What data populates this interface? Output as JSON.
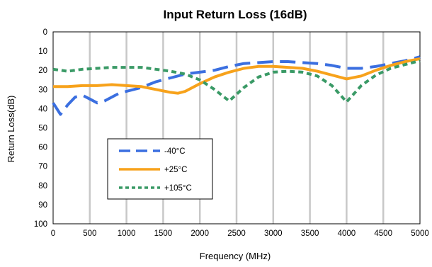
{
  "chart_data": {
    "type": "line",
    "title": "Input Return Loss (16dB)",
    "xlabel": "Frequency (MHz)",
    "ylabel": "Return Loss(dB)",
    "xlim": [
      0,
      5000
    ],
    "ylim": [
      0,
      100
    ],
    "y_inverted": true,
    "x_ticks": [
      0,
      500,
      1000,
      1500,
      2000,
      2500,
      3000,
      3500,
      4000,
      4500,
      5000
    ],
    "y_ticks": [
      0,
      10,
      20,
      30,
      40,
      50,
      60,
      70,
      80,
      90,
      100
    ],
    "grid": "vertical",
    "legend": "lower-left inside",
    "series": [
      {
        "name": "-40°C",
        "color": "#3b6fe0",
        "dash": "long-dash",
        "x": [
          0,
          100,
          200,
          300,
          400,
          500,
          600,
          700,
          800,
          900,
          1000,
          1200,
          1400,
          1600,
          1800,
          2000,
          2200,
          2400,
          2600,
          2800,
          3000,
          3200,
          3400,
          3600,
          3800,
          4000,
          4200,
          4400,
          4600,
          4800,
          5000
        ],
        "values": [
          37,
          43,
          38,
          34,
          33,
          35,
          37,
          36,
          34,
          32,
          31,
          29,
          26,
          24,
          22,
          21,
          20,
          18,
          16.5,
          16,
          15.5,
          15.5,
          16,
          16.5,
          17.5,
          19,
          19,
          18,
          16.5,
          15,
          13
        ]
      },
      {
        "name": "+25°C",
        "color": "#f7a21b",
        "dash": "solid",
        "x": [
          0,
          200,
          400,
          600,
          800,
          1000,
          1200,
          1400,
          1600,
          1700,
          1800,
          2000,
          2200,
          2400,
          2600,
          2800,
          3000,
          3200,
          3400,
          3600,
          3800,
          4000,
          4200,
          4400,
          4600,
          4800,
          5000
        ],
        "values": [
          28.5,
          28.5,
          28,
          28,
          27.5,
          28,
          28.5,
          30,
          31.5,
          32,
          31,
          27,
          23.5,
          21,
          19,
          18,
          18,
          18.5,
          19,
          20.5,
          22.5,
          24.5,
          23,
          20,
          17.5,
          15.5,
          14
        ]
      },
      {
        "name": "+105°C",
        "color": "#3a9a66",
        "dash": "short-dash",
        "x": [
          0,
          200,
          400,
          600,
          800,
          1000,
          1200,
          1400,
          1600,
          1800,
          2000,
          2200,
          2400,
          2600,
          2800,
          3000,
          3200,
          3400,
          3600,
          3800,
          4000,
          4200,
          4400,
          4600,
          4800,
          5000
        ],
        "values": [
          19.5,
          20.5,
          19.5,
          19,
          18.5,
          18.5,
          18.5,
          19.5,
          20.5,
          22,
          25,
          30,
          36,
          29,
          23.5,
          21,
          20.5,
          21,
          23,
          28,
          36.5,
          28,
          22.5,
          19,
          17,
          15
        ]
      }
    ]
  }
}
